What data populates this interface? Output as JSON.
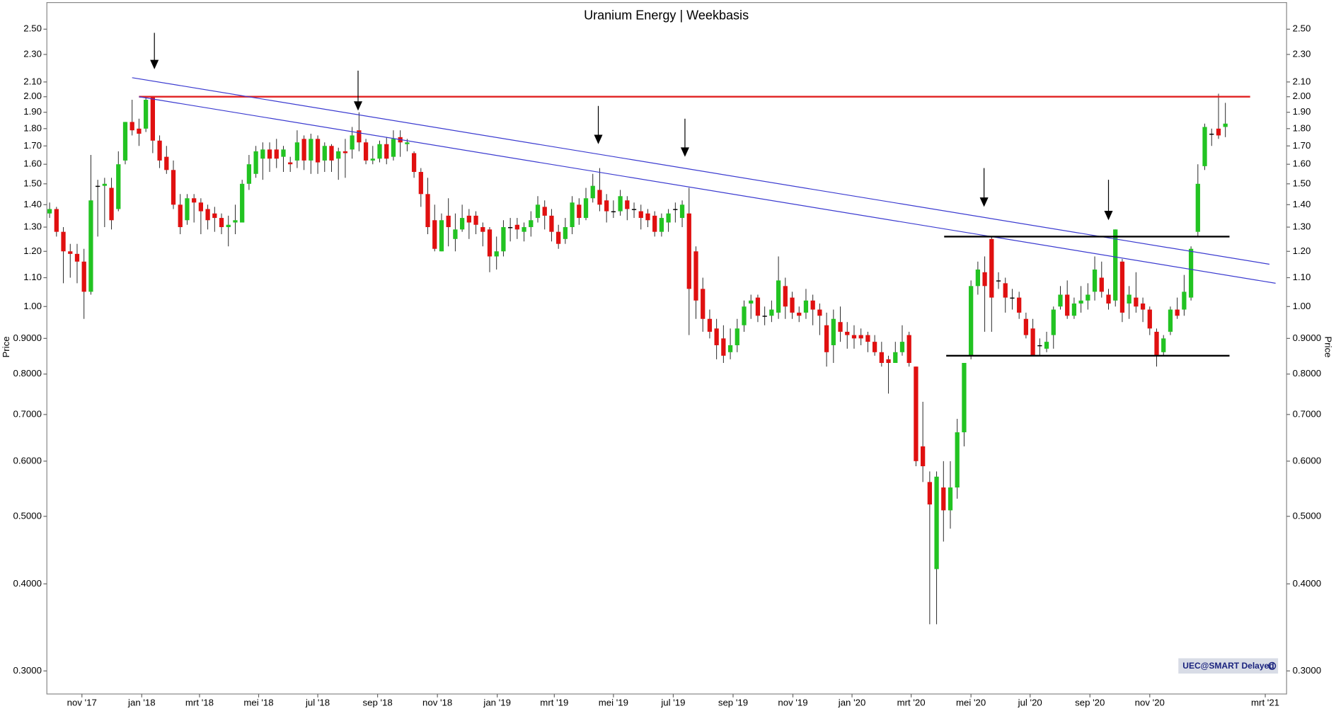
{
  "chart_data": {
    "type": "candlestick",
    "title": "Uranium Energy | Weekbasis",
    "y_label": "Price",
    "badge": "UEC@SMART Delayed",
    "log_scale": true,
    "grid": false,
    "up_color": "#22c322",
    "down_color": "#e01010",
    "doji_color": "#000000",
    "ylim": [
      0.278,
      2.73
    ],
    "yticks": [
      {
        "value": 0.3,
        "label": "0.3000"
      },
      {
        "value": 0.4,
        "label": "0.4000"
      },
      {
        "value": 0.5,
        "label": "0.5000"
      },
      {
        "value": 0.6,
        "label": "0.6000"
      },
      {
        "value": 0.7,
        "label": "0.7000"
      },
      {
        "value": 0.8,
        "label": "0.8000"
      },
      {
        "value": 0.9,
        "label": "0.9000"
      },
      {
        "value": 1,
        "label": "1.00"
      },
      {
        "value": 1.1,
        "label": "1.10"
      },
      {
        "value": 1.2,
        "label": "1.20"
      },
      {
        "value": 1.3,
        "label": "1.30"
      },
      {
        "value": 1.4,
        "label": "1.40"
      },
      {
        "value": 1.5,
        "label": "1.50"
      },
      {
        "value": 1.6,
        "label": "1.60"
      },
      {
        "value": 1.7,
        "label": "1.70"
      },
      {
        "value": 1.8,
        "label": "1.80"
      },
      {
        "value": 1.9,
        "label": "1.90"
      },
      {
        "value": 2,
        "label": "2.00"
      },
      {
        "value": 2.1,
        "label": "2.10"
      },
      {
        "value": 2.3,
        "label": "2.30"
      },
      {
        "value": 2.5,
        "label": "2.50"
      }
    ],
    "xlim": [
      -0.4,
      179.9
    ],
    "xticks": [
      {
        "value": 4.7,
        "label": "nov '17"
      },
      {
        "value": 13.4,
        "label": "jan '18"
      },
      {
        "value": 21.8,
        "label": "mrt '18"
      },
      {
        "value": 30.4,
        "label": "mei '18"
      },
      {
        "value": 39.0,
        "label": "jul '18"
      },
      {
        "value": 47.7,
        "label": "sep '18"
      },
      {
        "value": 56.4,
        "label": "nov '18"
      },
      {
        "value": 65.1,
        "label": "jan '19"
      },
      {
        "value": 73.4,
        "label": "mrt '19"
      },
      {
        "value": 82.0,
        "label": "mei '19"
      },
      {
        "value": 90.7,
        "label": "jul '19"
      },
      {
        "value": 99.4,
        "label": "sep '19"
      },
      {
        "value": 108.1,
        "label": "nov '19"
      },
      {
        "value": 116.7,
        "label": "jan '20"
      },
      {
        "value": 125.3,
        "label": "mrt '20"
      },
      {
        "value": 134.0,
        "label": "mei '20"
      },
      {
        "value": 142.6,
        "label": "jul '20"
      },
      {
        "value": 151.3,
        "label": "sep '20"
      },
      {
        "value": 160.0,
        "label": "nov '20"
      },
      {
        "value": 176.8,
        "label": "mrt '21"
      }
    ],
    "open": [
      1.36,
      1.38,
      1.28,
      1.2,
      1.19,
      1.16,
      1.05,
      1.49,
      1.49,
      1.48,
      1.38,
      1.62,
      1.84,
      1.8,
      1.8,
      2.0,
      1.73,
      1.64,
      1.57,
      1.4,
      1.33,
      1.43,
      1.41,
      1.38,
      1.36,
      1.34,
      1.3,
      1.32,
      1.32,
      1.5,
      1.55,
      1.63,
      1.68,
      1.68,
      1.64,
      1.61,
      1.62,
      1.74,
      1.62,
      1.74,
      1.62,
      1.7,
      1.63,
      1.67,
      1.68,
      1.79,
      1.72,
      1.62,
      1.63,
      1.71,
      1.64,
      1.75,
      1.71,
      1.66,
      1.56,
      1.45,
      1.33,
      1.2,
      1.35,
      1.25,
      1.29,
      1.35,
      1.35,
      1.3,
      1.29,
      1.18,
      1.2,
      1.3,
      1.31,
      1.28,
      1.3,
      1.34,
      1.39,
      1.35,
      1.28,
      1.25,
      1.3,
      1.4,
      1.34,
      1.43,
      1.47,
      1.42,
      1.37,
      1.37,
      1.42,
      1.38,
      1.37,
      1.36,
      1.35,
      1.28,
      1.32,
      1.38,
      1.34,
      1.36,
      1.2,
      1.06,
      0.96,
      0.93,
      0.9,
      0.86,
      0.88,
      0.94,
      1.01,
      1.03,
      0.97,
      0.97,
      0.98,
      1.07,
      1.03,
      0.98,
      0.98,
      1.02,
      0.99,
      0.94,
      0.88,
      0.95,
      0.92,
      0.91,
      0.91,
      0.91,
      0.89,
      0.86,
      0.84,
      0.83,
      0.86,
      0.91,
      0.82,
      0.63,
      0.56,
      0.42,
      0.55,
      0.51,
      0.55,
      0.66,
      0.85,
      1.07,
      1.12,
      1.25,
      1.09,
      1.08,
      1.03,
      1.03,
      0.96,
      0.93,
      0.88,
      0.87,
      0.91,
      1.0,
      1.04,
      0.97,
      1.01,
      1.02,
      1.05,
      1.1,
      1.04,
      1.02,
      1.16,
      1.01,
      1.03,
      1.01,
      0.99,
      0.92,
      0.86,
      0.92,
      0.99,
      0.99,
      1.03,
      1.28,
      1.59,
      1.77,
      1.8,
      1.81
    ],
    "high": [
      1.41,
      1.39,
      1.3,
      1.23,
      1.23,
      1.21,
      1.65,
      1.52,
      1.53,
      1.53,
      1.67,
      1.84,
      1.98,
      1.86,
      2.0,
      2.0,
      1.76,
      1.7,
      1.62,
      1.45,
      1.45,
      1.45,
      1.43,
      1.4,
      1.39,
      1.36,
      1.35,
      1.4,
      1.52,
      1.65,
      1.7,
      1.72,
      1.72,
      1.74,
      1.7,
      1.64,
      1.79,
      1.76,
      1.77,
      1.76,
      1.72,
      1.71,
      1.69,
      1.74,
      1.81,
      1.9,
      1.74,
      1.7,
      1.73,
      1.75,
      1.79,
      1.79,
      1.74,
      1.67,
      1.58,
      1.53,
      1.4,
      1.36,
      1.43,
      1.36,
      1.4,
      1.38,
      1.37,
      1.32,
      1.3,
      1.26,
      1.33,
      1.34,
      1.34,
      1.32,
      1.37,
      1.44,
      1.42,
      1.38,
      1.31,
      1.34,
      1.44,
      1.43,
      1.48,
      1.55,
      1.58,
      1.45,
      1.42,
      1.47,
      1.44,
      1.41,
      1.4,
      1.38,
      1.37,
      1.36,
      1.38,
      1.41,
      1.42,
      1.48,
      1.22,
      1.1,
      0.99,
      0.96,
      0.94,
      0.93,
      0.96,
      1.02,
      1.04,
      1.04,
      1.0,
      1.02,
      1.18,
      1.1,
      1.05,
      1.0,
      1.06,
      1.04,
      1.01,
      0.98,
      0.99,
      1.0,
      0.95,
      0.94,
      0.93,
      0.92,
      0.91,
      0.89,
      0.85,
      0.89,
      0.94,
      0.92,
      0.82,
      0.73,
      0.58,
      0.58,
      0.6,
      0.6,
      0.69,
      0.83,
      1.09,
      1.16,
      1.18,
      1.26,
      1.12,
      1.1,
      1.06,
      1.05,
      0.98,
      0.96,
      0.9,
      0.92,
      1.0,
      1.07,
      1.09,
      1.03,
      1.07,
      1.08,
      1.18,
      1.16,
      1.06,
      1.29,
      1.17,
      1.07,
      1.12,
      1.03,
      1.0,
      0.93,
      0.91,
      1.0,
      1.03,
      1.11,
      1.22,
      1.6,
      1.83,
      1.8,
      2.02,
      1.96
    ],
    "low": [
      1.34,
      1.26,
      1.08,
      1.1,
      1.08,
      0.96,
      1.04,
      1.26,
      1.3,
      1.29,
      1.37,
      1.6,
      1.76,
      1.7,
      1.78,
      1.66,
      1.58,
      1.55,
      1.38,
      1.27,
      1.31,
      1.32,
      1.27,
      1.29,
      1.28,
      1.27,
      1.22,
      1.27,
      1.32,
      1.47,
      1.53,
      1.52,
      1.56,
      1.58,
      1.56,
      1.56,
      1.58,
      1.57,
      1.55,
      1.55,
      1.56,
      1.56,
      1.52,
      1.53,
      1.63,
      1.67,
      1.6,
      1.6,
      1.61,
      1.6,
      1.62,
      1.64,
      1.67,
      1.53,
      1.39,
      1.27,
      1.2,
      1.2,
      1.22,
      1.2,
      1.28,
      1.25,
      1.27,
      1.22,
      1.12,
      1.13,
      1.18,
      1.24,
      1.25,
      1.24,
      1.26,
      1.32,
      1.29,
      1.24,
      1.21,
      1.23,
      1.27,
      1.31,
      1.33,
      1.41,
      1.37,
      1.32,
      1.34,
      1.35,
      1.33,
      1.34,
      1.29,
      1.3,
      1.26,
      1.26,
      1.28,
      1.32,
      1.3,
      0.91,
      0.96,
      0.92,
      0.9,
      0.84,
      0.83,
      0.84,
      0.86,
      0.92,
      0.96,
      0.95,
      0.94,
      0.95,
      0.96,
      0.96,
      0.96,
      0.95,
      0.96,
      0.94,
      0.91,
      0.82,
      0.83,
      0.89,
      0.87,
      0.87,
      0.88,
      0.86,
      0.85,
      0.82,
      0.75,
      0.83,
      0.85,
      0.82,
      0.59,
      0.56,
      0.35,
      0.35,
      0.46,
      0.48,
      0.53,
      0.63,
      0.84,
      1.04,
      0.92,
      0.92,
      1.06,
      0.98,
      0.99,
      0.96,
      0.9,
      0.85,
      0.85,
      0.86,
      0.87,
      0.99,
      0.96,
      0.96,
      0.98,
      0.99,
      1.02,
      1.03,
      0.99,
      1.0,
      0.95,
      0.96,
      0.98,
      0.95,
      0.91,
      0.82,
      0.85,
      0.91,
      0.96,
      0.97,
      1.02,
      1.26,
      1.57,
      1.7,
      1.74,
      1.75
    ],
    "close": [
      1.38,
      1.28,
      1.2,
      1.19,
      1.16,
      1.05,
      1.42,
      1.49,
      1.5,
      1.33,
      1.6,
      1.84,
      1.79,
      1.77,
      1.98,
      1.73,
      1.62,
      1.57,
      1.4,
      1.3,
      1.43,
      1.41,
      1.37,
      1.33,
      1.34,
      1.3,
      1.31,
      1.33,
      1.5,
      1.6,
      1.67,
      1.68,
      1.63,
      1.63,
      1.68,
      1.6,
      1.72,
      1.62,
      1.74,
      1.61,
      1.7,
      1.62,
      1.67,
      1.66,
      1.76,
      1.72,
      1.62,
      1.63,
      1.71,
      1.63,
      1.74,
      1.72,
      1.72,
      1.56,
      1.45,
      1.3,
      1.21,
      1.33,
      1.3,
      1.29,
      1.34,
      1.32,
      1.31,
      1.28,
      1.18,
      1.2,
      1.3,
      1.3,
      1.29,
      1.3,
      1.33,
      1.4,
      1.35,
      1.28,
      1.23,
      1.3,
      1.41,
      1.34,
      1.43,
      1.49,
      1.4,
      1.37,
      1.37,
      1.44,
      1.38,
      1.38,
      1.34,
      1.33,
      1.28,
      1.34,
      1.36,
      1.38,
      1.4,
      1.06,
      1.02,
      0.96,
      0.92,
      0.88,
      0.85,
      0.88,
      0.93,
      1.0,
      1.02,
      0.97,
      0.97,
      0.99,
      1.09,
      1.0,
      0.98,
      0.97,
      1.02,
      0.99,
      0.97,
      0.86,
      0.96,
      0.92,
      0.91,
      0.9,
      0.9,
      0.89,
      0.86,
      0.83,
      0.83,
      0.86,
      0.89,
      0.83,
      0.6,
      0.59,
      0.52,
      0.57,
      0.51,
      0.55,
      0.66,
      0.83,
      1.07,
      1.13,
      1.07,
      1.03,
      1.09,
      1.03,
      1.03,
      0.98,
      0.91,
      0.85,
      0.88,
      0.89,
      0.99,
      1.04,
      0.97,
      1.01,
      1.02,
      1.04,
      1.13,
      1.05,
      1.01,
      1.29,
      0.98,
      1.04,
      1.0,
      0.99,
      0.93,
      0.85,
      0.9,
      0.99,
      0.97,
      1.05,
      1.21,
      1.5,
      1.81,
      1.77,
      1.76,
      1.83
    ],
    "lines": [
      {
        "x": [
          13.0,
          174.6
        ],
        "y": [
          2.0,
          2.0
        ],
        "color": "#e02020"
      },
      {
        "x": [
          12.0,
          177.4
        ],
        "y": [
          2.13,
          1.15
        ],
        "color": "#3a3ad0"
      },
      {
        "x": [
          13.0,
          178.3
        ],
        "y": [
          2.0,
          1.08
        ],
        "color": "#3a3ad0"
      },
      {
        "x": [
          130.1,
          171.6
        ],
        "y": [
          1.26,
          1.26
        ],
        "color": "#000000"
      },
      {
        "x": [
          130.4,
          171.6
        ],
        "y": [
          0.85,
          0.85
        ],
        "color": "#000000"
      }
    ],
    "arrows": [
      {
        "x": 15.24,
        "y": [
          2.47,
          2.19
        ]
      },
      {
        "x": 44.86,
        "y": [
          2.18,
          1.91
        ]
      },
      {
        "x": 79.8,
        "y": [
          1.94,
          1.71
        ]
      },
      {
        "x": 92.4,
        "y": [
          1.86,
          1.64
        ]
      },
      {
        "x": 135.9,
        "y": [
          1.58,
          1.39
        ]
      },
      {
        "x": 154.0,
        "y": [
          1.52,
          1.33
        ]
      }
    ]
  }
}
